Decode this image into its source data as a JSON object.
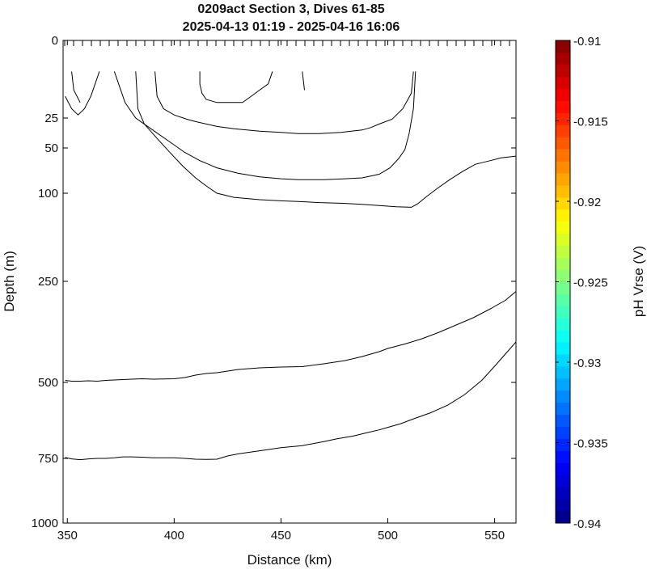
{
  "chart_data": {
    "type": "contour",
    "title_line1": "0209act Section 3, Dives 61-85",
    "title_line2": "2025-04-13 01:19 - 2025-04-16 16:06",
    "xlabel": "Distance (km)",
    "ylabel": "Depth (m)",
    "xlim": [
      348,
      560
    ],
    "ylim": [
      0,
      1000
    ],
    "y_scale": "piecewise-stretched (shallow expanded)",
    "x_ticks": [
      "350",
      "400",
      "450",
      "500",
      "550"
    ],
    "y_ticks": [
      "0",
      "25",
      "50",
      "100",
      "250",
      "500",
      "750",
      "1000"
    ],
    "grid": false,
    "colorbar": {
      "label": "pH Vrse (V)",
      "min": -0.94,
      "max": -0.91,
      "ticks": [
        "-0.91",
        "-0.915",
        "-0.92",
        "-0.925",
        "-0.93",
        "-0.935",
        "-0.94"
      ],
      "colormap": "jet",
      "steps": 40
    },
    "contours": [
      [
        [
          349,
          18
        ],
        [
          352,
          22
        ],
        [
          355,
          24
        ],
        [
          358,
          22
        ],
        [
          361,
          18
        ],
        [
          363,
          14
        ],
        [
          365,
          10
        ]
      ],
      [
        [
          372,
          10
        ],
        [
          374,
          14
        ],
        [
          377,
          20
        ],
        [
          382,
          25
        ],
        [
          390,
          35
        ],
        [
          398,
          45
        ],
        [
          405,
          55
        ],
        [
          412,
          64
        ],
        [
          420,
          72
        ],
        [
          430,
          78
        ],
        [
          440,
          82
        ],
        [
          450,
          84
        ],
        [
          458,
          85
        ],
        [
          470,
          85
        ],
        [
          480,
          84
        ],
        [
          488,
          83
        ],
        [
          496,
          79
        ],
        [
          501,
          72
        ],
        [
          505,
          62
        ],
        [
          508,
          52
        ],
        [
          510,
          38
        ],
        [
          512,
          22
        ],
        [
          513,
          10
        ]
      ],
      [
        [
          382,
          10
        ],
        [
          383,
          22
        ],
        [
          386,
          30
        ],
        [
          392,
          42
        ],
        [
          398,
          55
        ],
        [
          404,
          70
        ],
        [
          410,
          83
        ],
        [
          415,
          92
        ],
        [
          420,
          100
        ],
        [
          428,
          107
        ],
        [
          440,
          111
        ],
        [
          450,
          113
        ],
        [
          458,
          114
        ],
        [
          468,
          116
        ],
        [
          478,
          117
        ],
        [
          488,
          119
        ],
        [
          496,
          121
        ],
        [
          504,
          123
        ],
        [
          511,
          124
        ],
        [
          514,
          118
        ],
        [
          518,
          106
        ],
        [
          523,
          95
        ],
        [
          529,
          85
        ],
        [
          535,
          76
        ],
        [
          541,
          68
        ],
        [
          548,
          64
        ],
        [
          553,
          61
        ],
        [
          560,
          59
        ]
      ],
      [
        [
          391,
          10
        ],
        [
          392,
          18
        ],
        [
          395,
          22
        ],
        [
          400,
          24
        ],
        [
          406,
          26
        ],
        [
          410,
          28
        ],
        [
          415,
          30
        ],
        [
          420,
          32
        ],
        [
          428,
          34
        ],
        [
          440,
          36
        ],
        [
          450,
          37
        ],
        [
          458,
          38
        ],
        [
          468,
          38
        ],
        [
          478,
          37
        ],
        [
          488,
          35
        ],
        [
          492,
          33
        ],
        [
          496,
          30
        ],
        [
          502,
          26
        ],
        [
          507,
          22
        ],
        [
          511,
          17
        ],
        [
          512,
          10
        ]
      ],
      [
        [
          412,
          10
        ],
        [
          412,
          14
        ],
        [
          413,
          17
        ],
        [
          415,
          19
        ],
        [
          420,
          20
        ],
        [
          425,
          20
        ],
        [
          432,
          20
        ],
        [
          436,
          18
        ],
        [
          440,
          16
        ],
        [
          444,
          14
        ],
        [
          446,
          10
        ]
      ],
      [
        [
          352,
          10
        ],
        [
          353,
          16
        ],
        [
          356,
          20
        ]
      ],
      [
        [
          460,
          10
        ],
        [
          461,
          16
        ]
      ],
      [
        [
          349,
          495
        ],
        [
          352,
          497
        ],
        [
          356,
          497
        ],
        [
          360,
          496
        ],
        [
          364,
          497
        ],
        [
          368,
          495
        ],
        [
          372,
          494
        ],
        [
          376,
          493
        ],
        [
          380,
          492
        ],
        [
          385,
          491
        ],
        [
          390,
          492
        ],
        [
          400,
          491
        ],
        [
          405,
          488
        ],
        [
          410,
          482
        ],
        [
          415,
          478
        ],
        [
          420,
          476
        ],
        [
          430,
          468
        ],
        [
          440,
          464
        ],
        [
          450,
          462
        ],
        [
          460,
          461
        ],
        [
          470,
          454
        ],
        [
          480,
          446
        ],
        [
          488,
          436
        ],
        [
          496,
          424
        ],
        [
          500,
          416
        ],
        [
          508,
          405
        ],
        [
          516,
          392
        ],
        [
          524,
          376
        ],
        [
          532,
          358
        ],
        [
          540,
          340
        ],
        [
          548,
          318
        ],
        [
          555,
          297
        ],
        [
          560,
          275
        ]
      ],
      [
        [
          349,
          747
        ],
        [
          352,
          752
        ],
        [
          356,
          755
        ],
        [
          360,
          752
        ],
        [
          364,
          750
        ],
        [
          368,
          750
        ],
        [
          372,
          748
        ],
        [
          376,
          745
        ],
        [
          380,
          745
        ],
        [
          385,
          746
        ],
        [
          390,
          748
        ],
        [
          400,
          748
        ],
        [
          405,
          750
        ],
        [
          410,
          753
        ],
        [
          415,
          754
        ],
        [
          420,
          753
        ],
        [
          425,
          742
        ],
        [
          430,
          735
        ],
        [
          435,
          730
        ],
        [
          440,
          725
        ],
        [
          450,
          715
        ],
        [
          460,
          708
        ],
        [
          466,
          700
        ],
        [
          470,
          695
        ],
        [
          476,
          686
        ],
        [
          484,
          676
        ],
        [
          490,
          666
        ],
        [
          496,
          656
        ],
        [
          500,
          648
        ],
        [
          506,
          636
        ],
        [
          512,
          620
        ],
        [
          520,
          600
        ],
        [
          528,
          575
        ],
        [
          536,
          540
        ],
        [
          544,
          495
        ],
        [
          550,
          460
        ],
        [
          555,
          430
        ],
        [
          560,
          400
        ]
      ]
    ]
  }
}
